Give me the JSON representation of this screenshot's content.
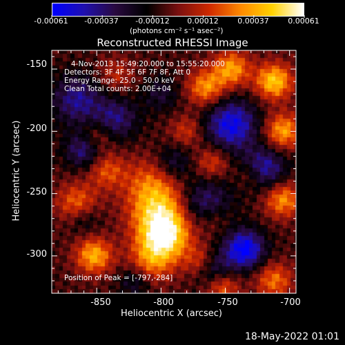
{
  "colorbar": {
    "ticks": [
      "-0.00061",
      "-0.00037",
      "-0.00012",
      "0.00012",
      "0.00037",
      "0.00061"
    ],
    "unit_label": "(photons cm⁻² s⁻¹ asec⁻²)",
    "range": [
      -0.00061,
      0.00061
    ],
    "colors": [
      "#0000ff",
      "#2010b0",
      "#2a0a40",
      "#000000",
      "#7a1010",
      "#d02a00",
      "#ff8a00",
      "#ffd200",
      "#ffffff"
    ]
  },
  "info": {
    "time": "4-Nov-2013 15:49:20.000 to 15:55:20.000",
    "detectors": "Detectors: 3F 4F 5F 6F 7F 8F, Att 0",
    "energy": "Energy Range: 25.0 - 50.0 keV",
    "clean": "Clean     Total counts: 2.00E+04",
    "peak": "Position of Peak = [-797,-284]"
  },
  "footer": {
    "date": "18-May-2022 01:01"
  },
  "chart_data": {
    "type": "heatmap",
    "title": "Reconstructed RHESSI Image",
    "xlabel": "Heliocentric X (arcsec)",
    "ylabel": "Heliocentric Y (arcsec)",
    "xlim": [
      -885,
      -695
    ],
    "ylim": [
      -330,
      -135
    ],
    "x_ticks": [
      -850,
      -800,
      -750,
      -700
    ],
    "y_ticks": [
      -150,
      -200,
      -250,
      -300
    ],
    "peak": {
      "x": -797,
      "y": -284
    },
    "blobs": [
      {
        "x": -797,
        "y": -284,
        "a": 1.0,
        "s": 14
      },
      {
        "x": -802,
        "y": -262,
        "a": 0.7,
        "s": 16
      },
      {
        "x": -810,
        "y": -240,
        "a": 0.35,
        "s": 14
      },
      {
        "x": -808,
        "y": -305,
        "a": 0.5,
        "s": 12
      },
      {
        "x": -852,
        "y": -300,
        "a": 0.75,
        "s": 10
      },
      {
        "x": -865,
        "y": -258,
        "a": 0.55,
        "s": 11
      },
      {
        "x": -842,
        "y": -232,
        "a": 0.45,
        "s": 10
      },
      {
        "x": -765,
        "y": -165,
        "a": 0.65,
        "s": 10
      },
      {
        "x": -745,
        "y": -150,
        "a": 0.7,
        "s": 10
      },
      {
        "x": -712,
        "y": -160,
        "a": 0.85,
        "s": 10
      },
      {
        "x": -705,
        "y": -200,
        "a": 0.7,
        "s": 10
      },
      {
        "x": -760,
        "y": -225,
        "a": 0.4,
        "s": 9
      },
      {
        "x": -705,
        "y": -255,
        "a": 0.65,
        "s": 10
      },
      {
        "x": -760,
        "y": -270,
        "a": 0.35,
        "s": 10
      },
      {
        "x": -768,
        "y": -305,
        "a": 0.5,
        "s": 9
      },
      {
        "x": -752,
        "y": -325,
        "a": 0.5,
        "s": 9
      },
      {
        "x": -712,
        "y": -320,
        "a": 0.55,
        "s": 10
      },
      {
        "x": -850,
        "y": -205,
        "a": 0.35,
        "s": 9
      },
      {
        "x": -835,
        "y": -155,
        "a": 0.3,
        "s": 10
      },
      {
        "x": -730,
        "y": -235,
        "a": 0.3,
        "s": 8
      },
      {
        "x": -780,
        "y": -200,
        "a": 0.35,
        "s": 9
      },
      {
        "x": -865,
        "y": -175,
        "a": -0.55,
        "s": 14
      },
      {
        "x": -835,
        "y": -190,
        "a": -0.5,
        "s": 12
      },
      {
        "x": -860,
        "y": -215,
        "a": -0.55,
        "s": 10
      },
      {
        "x": -860,
        "y": -270,
        "a": -0.3,
        "s": 9
      },
      {
        "x": -745,
        "y": -195,
        "a": -0.8,
        "s": 14
      },
      {
        "x": -720,
        "y": -230,
        "a": -0.65,
        "s": 12
      },
      {
        "x": -765,
        "y": -260,
        "a": -0.6,
        "s": 14
      },
      {
        "x": -735,
        "y": -295,
        "a": -0.9,
        "s": 11
      },
      {
        "x": -760,
        "y": -310,
        "a": -0.55,
        "s": 10
      },
      {
        "x": -790,
        "y": -225,
        "a": -0.35,
        "s": 10
      },
      {
        "x": -820,
        "y": -320,
        "a": -0.35,
        "s": 9
      },
      {
        "x": -800,
        "y": -170,
        "a": -0.3,
        "s": 10
      }
    ]
  }
}
